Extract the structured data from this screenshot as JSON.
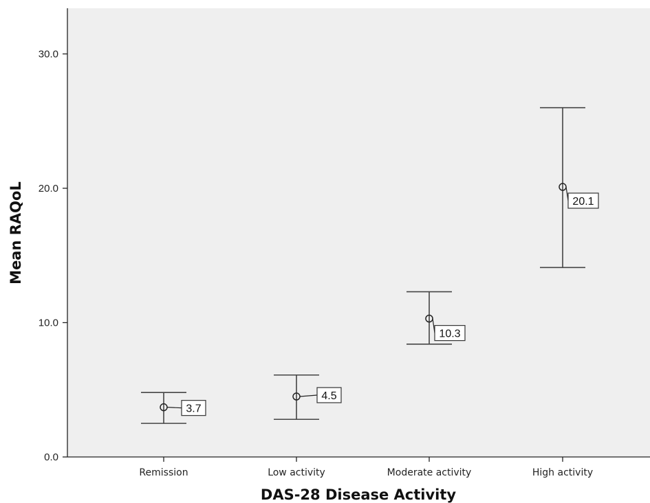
{
  "chart_data": {
    "type": "scatter",
    "title": "",
    "xlabel": "DAS-28 Disease Activity",
    "ylabel": "Mean RAQoL",
    "ylim": [
      0,
      33.4
    ],
    "yticks": [
      {
        "value": 0,
        "label": "0.0"
      },
      {
        "value": 10,
        "label": "10.0"
      },
      {
        "value": 20,
        "label": "20.0"
      },
      {
        "value": 30,
        "label": "30.0"
      }
    ],
    "grid": false,
    "categories": [
      "Remission",
      "Low activity",
      "Moderate activity",
      "High activity"
    ],
    "means": [
      3.7,
      4.5,
      10.3,
      20.1
    ],
    "error_low": [
      2.5,
      2.8,
      8.4,
      14.1
    ],
    "error_high": [
      4.8,
      6.1,
      12.3,
      26.0
    ],
    "data_labels": [
      "3.7",
      "4.5",
      "10.3",
      "20.1"
    ],
    "colors": {
      "plot_background": "#efefef",
      "axis": "#222222",
      "marker": "#222222",
      "error_bar": "#444444"
    }
  }
}
